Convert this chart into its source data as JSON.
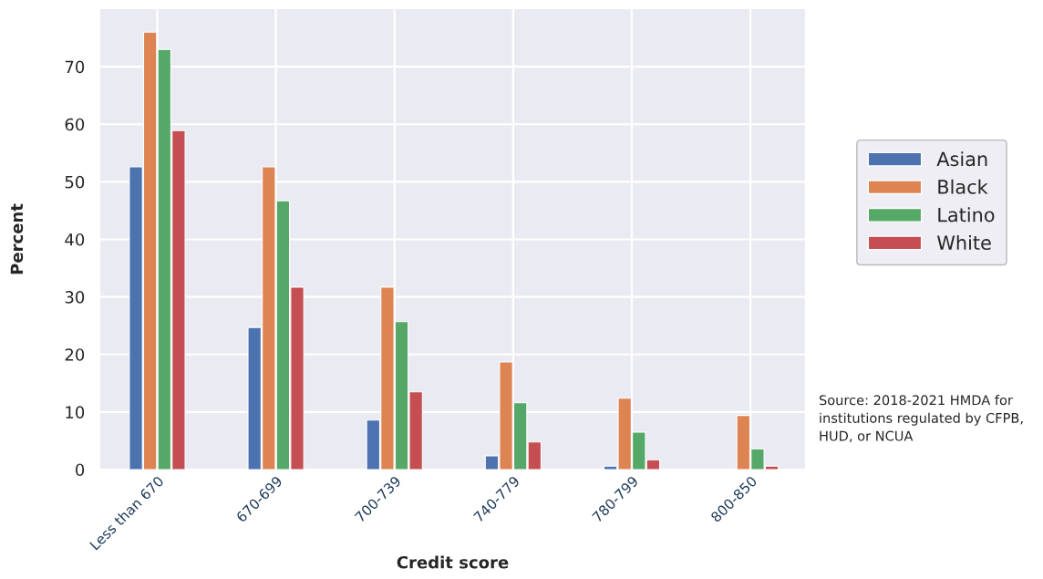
{
  "chart_data": {
    "type": "bar",
    "xlabel": "Credit score",
    "ylabel": "Percent",
    "categories": [
      "Less than 670",
      "670-699",
      "700-739",
      "740-779",
      "780-799",
      "800-850"
    ],
    "series": [
      {
        "name": "Asian",
        "color": "#4c72b0",
        "values": [
          52.6,
          24.7,
          8.6,
          2.4,
          0.6,
          null
        ]
      },
      {
        "name": "Black",
        "color": "#dd8452",
        "values": [
          76.0,
          52.6,
          31.7,
          18.7,
          12.4,
          9.4
        ]
      },
      {
        "name": "Latino",
        "color": "#55a868",
        "values": [
          73.0,
          46.7,
          25.7,
          11.6,
          6.5,
          3.6
        ]
      },
      {
        "name": "White",
        "color": "#c44e52",
        "values": [
          58.9,
          31.7,
          13.5,
          4.8,
          1.7,
          0.6
        ]
      }
    ],
    "ylim": [
      0,
      80
    ],
    "yticks": [
      0,
      10,
      20,
      30,
      40,
      50,
      60,
      70
    ],
    "grid": true,
    "legend": "right",
    "annotations": [
      "Source: 2018-2021 HMDA for institutions regulated by CFPB, HUD, or NCUA"
    ]
  }
}
